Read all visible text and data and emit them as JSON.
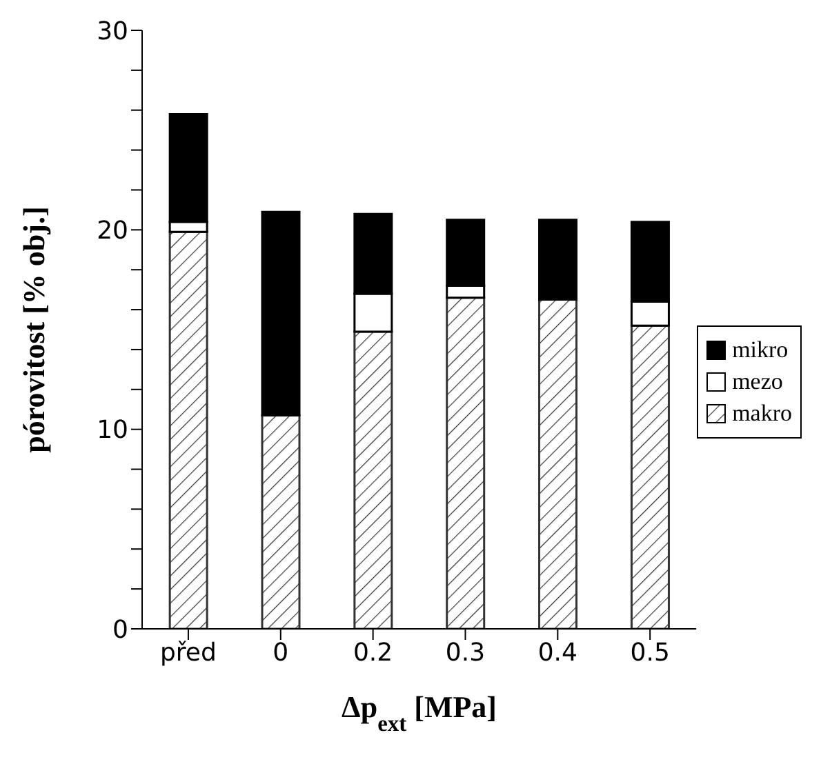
{
  "chart_data": {
    "type": "bar",
    "stacked": true,
    "categories": [
      "před",
      "0",
      "0.2",
      "0.3",
      "0.4",
      "0.5"
    ],
    "series": [
      {
        "name": "makro",
        "color": "#333333",
        "values": [
          19.9,
          10.7,
          14.9,
          16.6,
          16.5,
          15.2
        ]
      },
      {
        "name": "mezo",
        "color": "#ffffff",
        "values": [
          0.5,
          0,
          1.9,
          0.6,
          0,
          1.2
        ]
      },
      {
        "name": "mikro",
        "color": "#000000",
        "values": [
          5.4,
          10.2,
          4.0,
          3.3,
          4.0,
          4.0
        ]
      }
    ],
    "ylim": [
      0,
      30
    ],
    "yticks": [
      0,
      {
        "value": 2,
        "label": null
      },
      {
        "value": 4,
        "label": null
      },
      {
        "value": 6,
        "label": null
      },
      {
        "value": 8,
        "label": null
      },
      10,
      {
        "value": 12,
        "label": null
      },
      {
        "value": 14,
        "label": null
      },
      {
        "value": 16,
        "label": null
      },
      {
        "value": 18,
        "label": null
      },
      20,
      {
        "value": 22,
        "label": null
      },
      {
        "value": 24,
        "label": null
      },
      {
        "value": 26,
        "label": null
      },
      {
        "value": 28,
        "label": null
      },
      30
    ],
    "ylabel": "pórovitost [% obj.]",
    "xlabel": "Δp$_{ext}$ [MPa]",
    "legend": "right",
    "grid": false
  }
}
